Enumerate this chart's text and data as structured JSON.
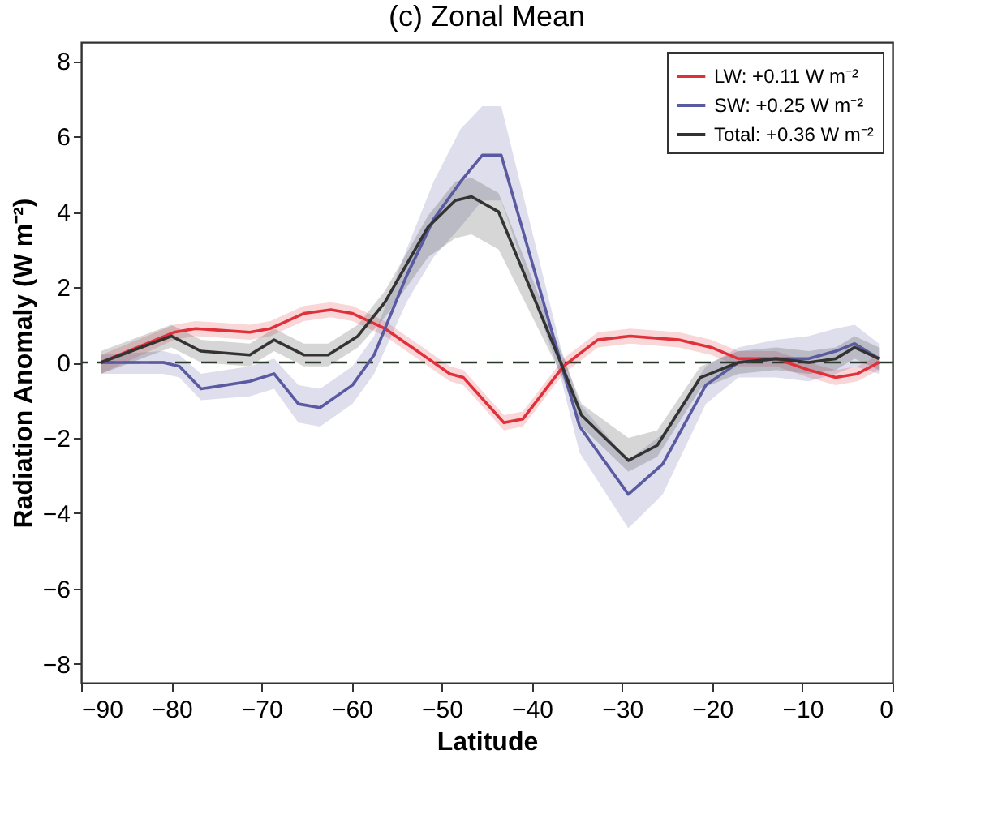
{
  "chart_data": {
    "type": "line",
    "title": "(c) Zonal Mean",
    "xlabel": "Latitude",
    "ylabel": "Radiation Anomaly (W m⁻²)",
    "xlim": [
      -90,
      0
    ],
    "xticks": [
      -90,
      -80,
      -70,
      -60,
      -50,
      -40,
      -30,
      -20,
      -10,
      0
    ],
    "ylim": [
      -8.5,
      8.5
    ],
    "yticks": [
      -8,
      -6,
      -4,
      -2,
      0,
      2,
      4,
      6,
      8
    ],
    "grid": false,
    "legend": "top right",
    "marker": "none",
    "line_style": "solid",
    "ref_lines": [
      {
        "axis": "y",
        "value": 0,
        "color": "#2a3a2a",
        "line_style": "dashed"
      }
    ],
    "series": [
      {
        "name": "LW:  +0.11 W m⁻²",
        "color": "#e0303a",
        "x": [
          -87.8,
          -79.7,
          -77.3,
          -71.3,
          -69,
          -65.3,
          -62.3,
          -59.9,
          -56.3,
          -51.5,
          -49.1,
          -47.6,
          -43.1,
          -41,
          -36.5,
          -32.7,
          -29.1,
          -23.7,
          -20.1,
          -17.1,
          -12.9,
          -9.3,
          -6.3,
          -3.9,
          -1.5
        ],
        "values": [
          0,
          0.8,
          0.9,
          0.8,
          0.9,
          1.3,
          1.4,
          1.3,
          0.9,
          0.1,
          -0.3,
          -0.4,
          -1.6,
          -1.5,
          -0.1,
          0.6,
          0.7,
          0.6,
          0.4,
          0.1,
          0.1,
          -0.2,
          -0.4,
          -0.3,
          0
        ],
        "lower": [
          -0.3,
          0.6,
          0.7,
          0.6,
          0.7,
          1.1,
          1.2,
          1.1,
          0.7,
          -0.1,
          -0.5,
          -0.6,
          -1.8,
          -1.7,
          -0.3,
          0.4,
          0.5,
          0.4,
          0.2,
          -0.1,
          -0.1,
          -0.4,
          -0.6,
          -0.5,
          -0.2
        ],
        "upper": [
          0.2,
          1.0,
          1.1,
          1.0,
          1.1,
          1.5,
          1.6,
          1.5,
          1.1,
          0.3,
          -0.1,
          -0.2,
          -1.4,
          -1.3,
          0.1,
          0.8,
          0.9,
          0.8,
          0.6,
          0.3,
          0.3,
          0,
          -0.2,
          -0.1,
          0.2
        ]
      },
      {
        "name": "SW:  +0.25 W m⁻²",
        "color": "#5a5aa0",
        "x": [
          -87.8,
          -80.9,
          -79.1,
          -76.7,
          -71.3,
          -68.6,
          -65.9,
          -63.5,
          -59.9,
          -57.5,
          -53.9,
          -50.9,
          -47.9,
          -45.5,
          -43.4,
          -36.8,
          -34.7,
          -29.3,
          -25.5,
          -20.7,
          -17.1,
          -12.9,
          -9.3,
          -6.3,
          -4.2,
          -1.5
        ],
        "values": [
          0,
          0,
          -0.1,
          -0.7,
          -0.5,
          -0.3,
          -1.1,
          -1.2,
          -0.6,
          0.2,
          2.3,
          3.8,
          4.8,
          5.5,
          5.5,
          0,
          -1.7,
          -3.5,
          -2.7,
          -0.6,
          0,
          0.1,
          0.1,
          0.3,
          0.5,
          0.1
        ],
        "lower": [
          -0.3,
          -0.3,
          -0.4,
          -1.0,
          -0.9,
          -0.7,
          -1.6,
          -1.7,
          -1.1,
          -0.3,
          1.6,
          2.8,
          3.6,
          4.3,
          4.3,
          -0.4,
          -2.4,
          -4.4,
          -3.5,
          -1.1,
          -0.4,
          -0.4,
          -0.5,
          -0.3,
          -0.1,
          -0.3
        ],
        "upper": [
          0.2,
          0.3,
          0.2,
          -0.3,
          -0.1,
          0.1,
          -0.6,
          -0.7,
          -0.1,
          0.7,
          3,
          4.8,
          6.2,
          6.8,
          6.8,
          0.4,
          -1.1,
          -2.6,
          -1.9,
          -0.1,
          0.4,
          0.6,
          0.7,
          0.9,
          1.0,
          0.5
        ]
      },
      {
        "name": "Total: +0.36 W m⁻²",
        "color": "#333333",
        "x": [
          -87.8,
          -80,
          -76.7,
          -71.3,
          -68.6,
          -65.3,
          -62.6,
          -59.3,
          -56.3,
          -51.5,
          -48.5,
          -46.7,
          -43.7,
          -36.8,
          -34.5,
          -29.3,
          -26.1,
          -21.3,
          -17.1,
          -12.9,
          -9.3,
          -6.3,
          -4.2,
          -1.5
        ],
        "values": [
          0,
          0.7,
          0.3,
          0.2,
          0.6,
          0.2,
          0.2,
          0.7,
          1.6,
          3.6,
          4.3,
          4.4,
          4.0,
          0,
          -1.4,
          -2.6,
          -2.2,
          -0.4,
          0,
          0.1,
          0,
          0.1,
          0.4,
          0.1
        ],
        "lower": [
          -0.3,
          0.4,
          0,
          -0.1,
          0.3,
          -0.1,
          -0.1,
          0.4,
          1.2,
          2.8,
          3.3,
          3.4,
          3.0,
          -0.3,
          -1.7,
          -2.9,
          -2.5,
          -0.7,
          -0.3,
          -0.2,
          -0.3,
          -0.2,
          0.1,
          -0.2
        ],
        "upper": [
          0.3,
          1.0,
          0.6,
          0.5,
          0.9,
          0.5,
          0.5,
          1.0,
          1.9,
          3.9,
          4.8,
          4.9,
          4.5,
          0.3,
          -1.1,
          -2.0,
          -1.8,
          -0.1,
          0.3,
          0.4,
          0.3,
          0.4,
          0.7,
          0.4
        ]
      }
    ]
  }
}
